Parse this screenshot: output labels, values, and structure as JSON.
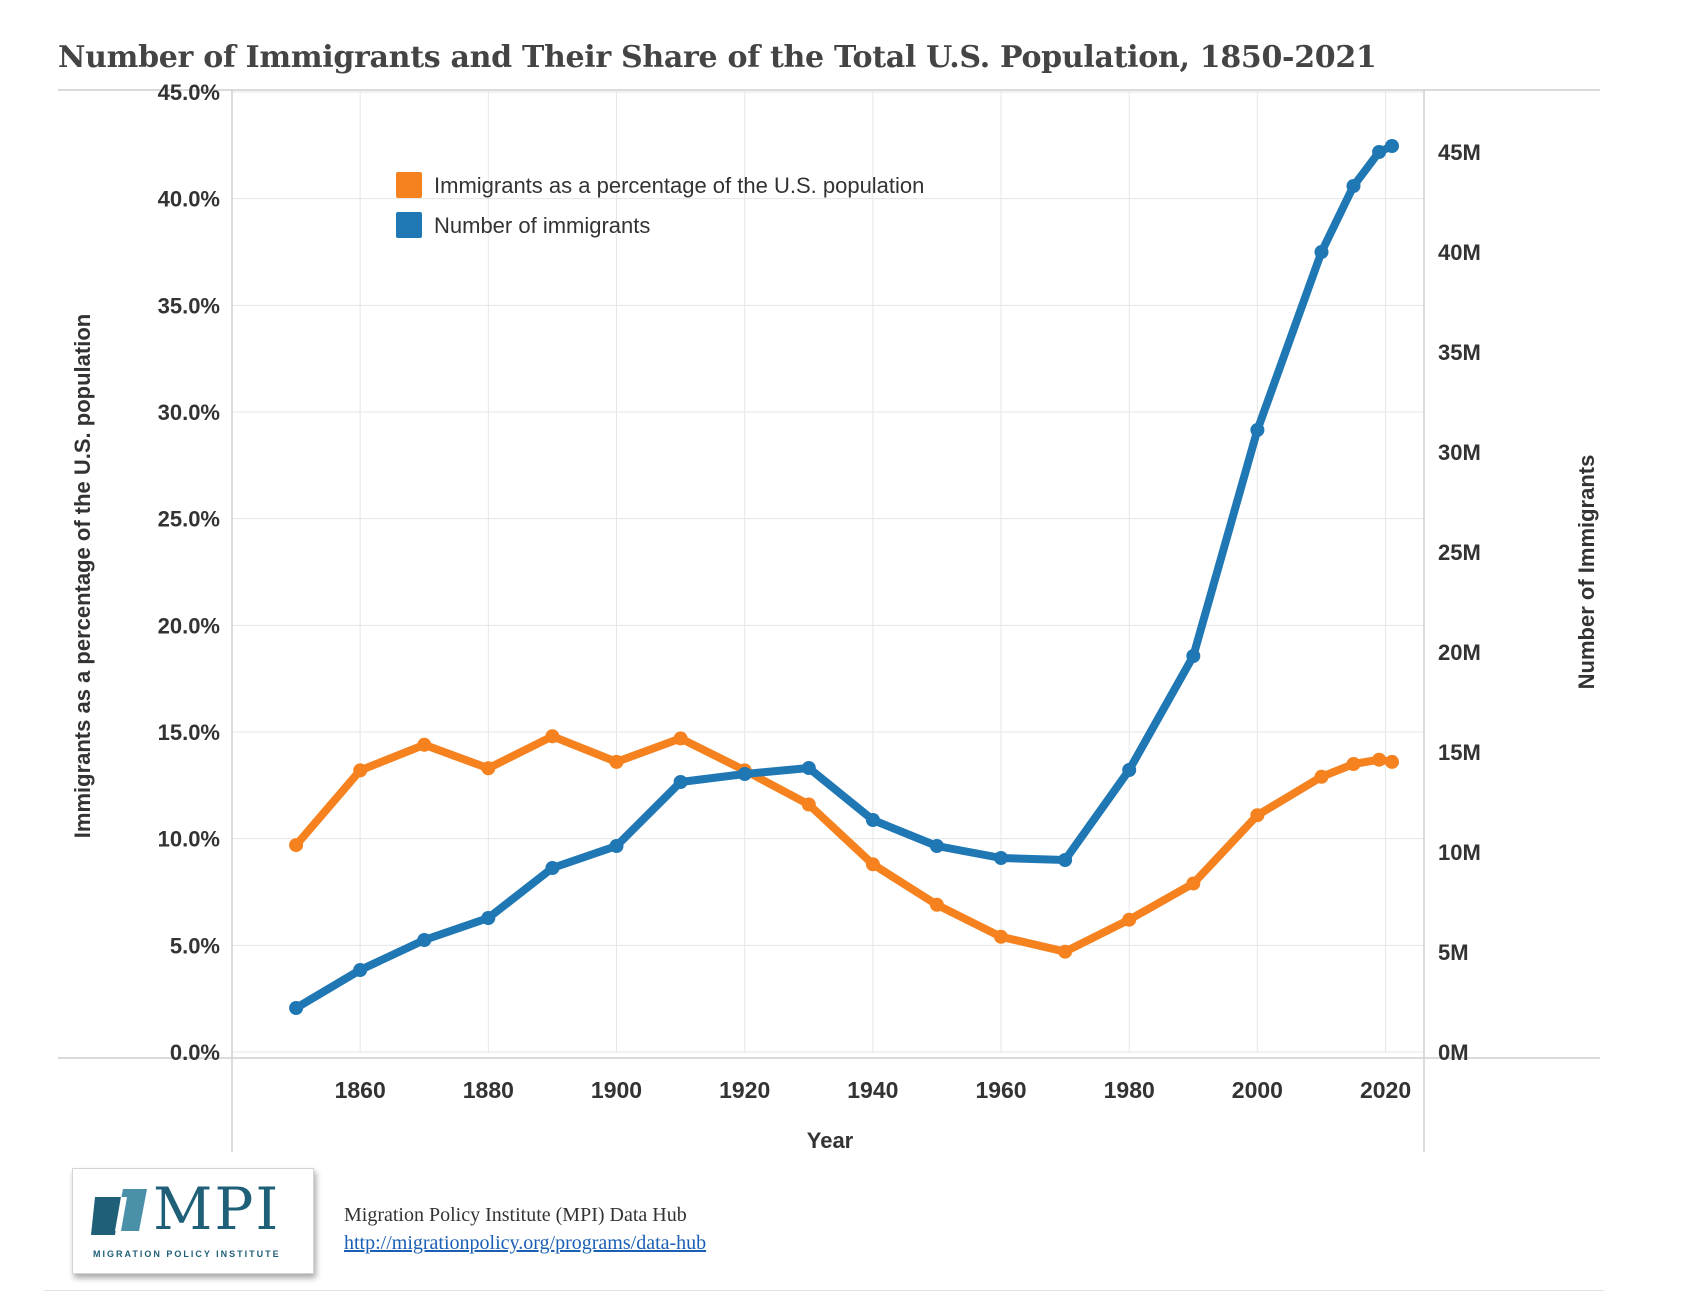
{
  "chart_data": {
    "type": "line",
    "title": "Number of Immigrants and Their Share of the Total U.S. Population, 1850-2021",
    "xlabel": "Year",
    "ylabel_left": "Immigrants as a percentage of the U.S. population",
    "ylabel_right": "Number of Immigrants",
    "x_ticks": [
      "1860",
      "1880",
      "1900",
      "1920",
      "1940",
      "1960",
      "1980",
      "2000",
      "2020"
    ],
    "x_range": [
      1840,
      2026
    ],
    "y_left_ticks": [
      "0.0%",
      "5.0%",
      "10.0%",
      "15.0%",
      "20.0%",
      "25.0%",
      "30.0%",
      "35.0%",
      "40.0%",
      "45.0%"
    ],
    "y_left_range": [
      0,
      45
    ],
    "y_right_ticks": [
      "0M",
      "5M",
      "10M",
      "15M",
      "20M",
      "25M",
      "30M",
      "35M",
      "40M",
      "45M"
    ],
    "y_right_range": [
      0,
      48
    ],
    "grid": true,
    "legend_position": "top-left",
    "x": [
      1850,
      1860,
      1870,
      1880,
      1890,
      1900,
      1910,
      1920,
      1930,
      1940,
      1950,
      1960,
      1970,
      1980,
      1990,
      2000,
      2010,
      2015,
      2019,
      2021
    ],
    "series": [
      {
        "name": "Immigrants as a percentage of the U.S. population",
        "axis": "left",
        "color": "#f5821f",
        "values": [
          9.7,
          13.2,
          14.4,
          13.3,
          14.8,
          13.6,
          14.7,
          13.2,
          11.6,
          8.8,
          6.9,
          5.4,
          4.7,
          6.2,
          7.9,
          11.1,
          12.9,
          13.5,
          13.7,
          13.6
        ]
      },
      {
        "name": "Number of immigrants",
        "axis": "right",
        "color": "#1f77b4",
        "values": [
          2.2,
          4.1,
          5.6,
          6.7,
          9.2,
          10.3,
          13.5,
          13.9,
          14.2,
          11.6,
          10.3,
          9.7,
          9.6,
          14.1,
          19.8,
          31.1,
          40.0,
          43.3,
          45.0,
          45.3
        ]
      }
    ]
  },
  "footer": {
    "logo_text": "MPI",
    "logo_subtext": "MIGRATION POLICY INSTITUTE",
    "source_name": "Migration Policy Institute (MPI) Data Hub",
    "source_url": "http://migrationpolicy.org/programs/data-hub"
  }
}
